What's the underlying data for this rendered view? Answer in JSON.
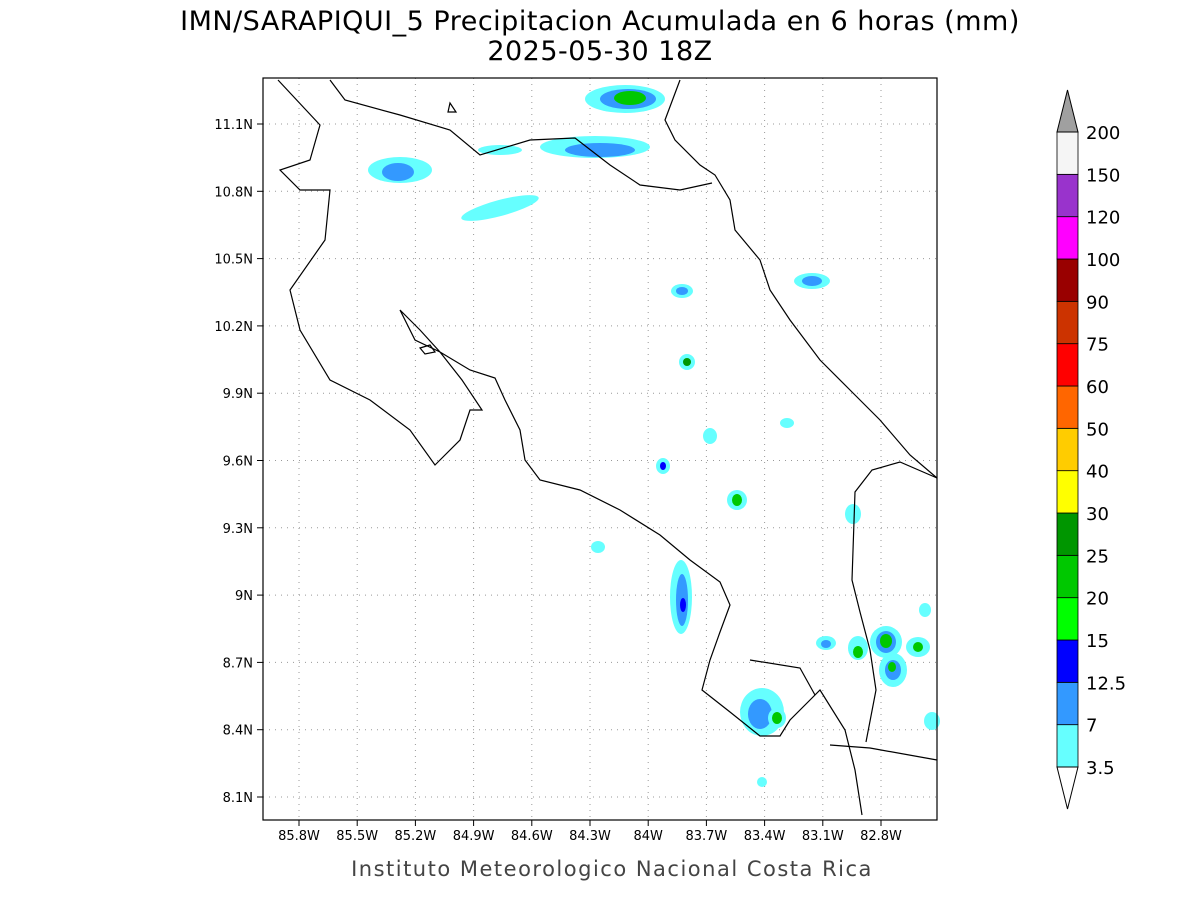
{
  "title": "IMN/SARAPIQUI_5 Precipitacion Acumulada en 6 horas (mm)",
  "subtitle": "2025-05-30 18Z",
  "footer": "Instituto Meteorologico Nacional Costa Rica",
  "map": {
    "lon_labels": [
      "85.8W",
      "85.5W",
      "85.2W",
      "84.9W",
      "84.6W",
      "84.3W",
      "84W",
      "83.7W",
      "83.4W",
      "83.1W",
      "82.8W"
    ],
    "lat_labels": [
      "11.1N",
      "10.8N",
      "10.5N",
      "10.2N",
      "9.9N",
      "9.6N",
      "9.3N",
      "9N",
      "8.7N",
      "8.4N",
      "8.1N"
    ]
  },
  "colorbar": {
    "levels": [
      3.5,
      7,
      12.5,
      15,
      20,
      25,
      30,
      40,
      50,
      60,
      75,
      90,
      100,
      120,
      150,
      200
    ],
    "colors": [
      "#66ffff",
      "#3399ff",
      "#0000ff",
      "#00ff00",
      "#00c800",
      "#009600",
      "#ffff00",
      "#ffcc00",
      "#ff6600",
      "#ff0000",
      "#cc3300",
      "#990000",
      "#ff00ff",
      "#9933cc",
      "#f5f5f5"
    ],
    "over_color": "#a0a0a0",
    "under_color": "#ffffff"
  }
}
